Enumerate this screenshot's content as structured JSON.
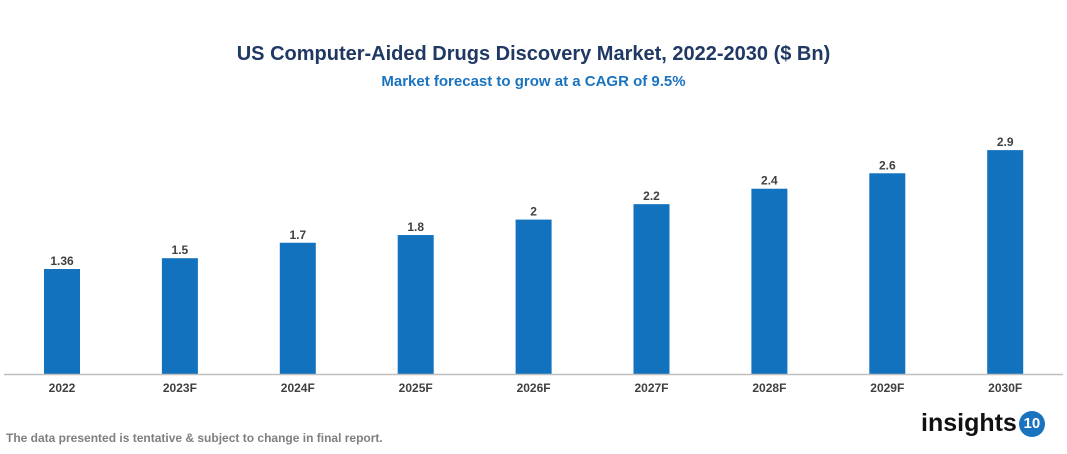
{
  "chart_data": {
    "type": "bar",
    "title": "US Computer-Aided Drugs Discovery Market, 2022-2030 ($ Bn)",
    "subtitle": "Market forecast to grow at a CAGR of 9.5%",
    "categories": [
      "2022",
      "2023F",
      "2024F",
      "2025F",
      "2026F",
      "2027F",
      "2028F",
      "2029F",
      "2030F"
    ],
    "values": [
      1.36,
      1.5,
      1.7,
      1.8,
      2,
      2.2,
      2.4,
      2.6,
      2.9
    ],
    "data_labels": [
      "1.36",
      "1.5",
      "1.7",
      "1.8",
      "2",
      "2.2",
      "2.4",
      "2.6",
      "2.9"
    ],
    "ylim": [
      0,
      3
    ],
    "grid": false,
    "bar_color": "#1272bd"
  },
  "footnote": "The data presented is tentative & subject to change in final report.",
  "logo": {
    "text": "insights",
    "badge": "10"
  }
}
